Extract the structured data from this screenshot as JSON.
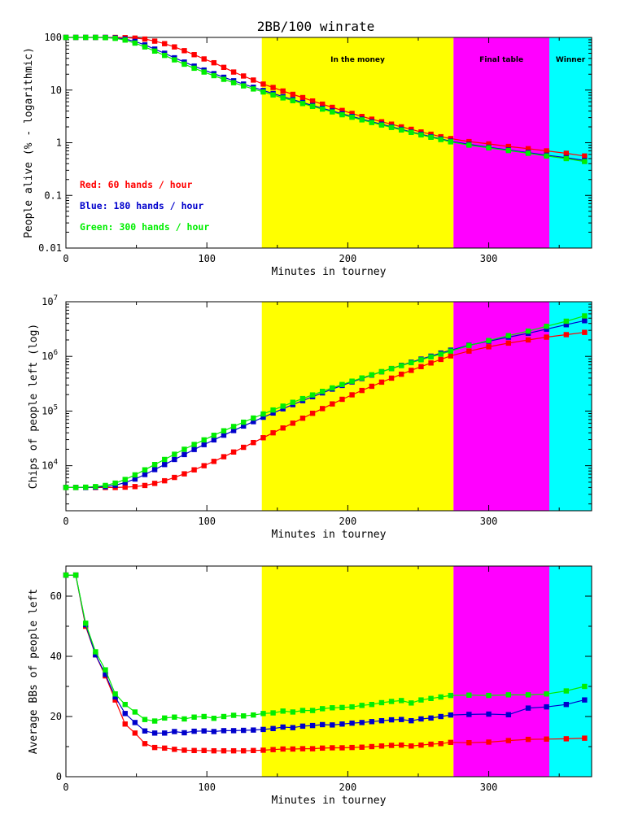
{
  "title": "2BB/100 winrate",
  "zones": [
    {
      "label": "",
      "x0": 0,
      "x1": 139,
      "color": "#ffffff"
    },
    {
      "label": "In the money",
      "x0": 139,
      "x1": 275,
      "color": "#ffff00"
    },
    {
      "label": "Final table",
      "x0": 275,
      "x1": 343,
      "color": "#ff00ff"
    },
    {
      "label": "Winner",
      "x0": 343,
      "x1": 373,
      "color": "#00ffff"
    }
  ],
  "legend": [
    {
      "text": "Red: 60 hands / hour",
      "color": "#ff0000"
    },
    {
      "text": "Blue: 180 hands / hour",
      "color": "#0000cc"
    },
    {
      "text": "Green: 300 hands / hour",
      "color": "#00ee00"
    }
  ],
  "chart_data": [
    {
      "type": "line",
      "title": "2BB/100 winrate",
      "xlabel": "Minutes in tourney",
      "ylabel": "People alive (% - logarithmic)",
      "xlim": [
        0,
        373
      ],
      "ylim": [
        0.01,
        100
      ],
      "yscale": "log",
      "xticks": [
        "0",
        "100",
        "200",
        "300"
      ],
      "yticks": [
        "0.01",
        "0.1",
        "1",
        "10",
        "100"
      ],
      "series": [
        {
          "name": "Red: 60 hands / hour",
          "color": "#ff0000",
          "x": [
            0,
            7,
            14,
            21,
            28,
            35,
            42,
            49,
            56,
            63,
            70,
            77,
            84,
            91,
            98,
            105,
            112,
            119,
            126,
            133,
            140,
            147,
            154,
            161,
            168,
            175,
            182,
            189,
            196,
            203,
            210,
            217,
            224,
            231,
            238,
            245,
            252,
            259,
            266,
            273,
            286,
            300,
            314,
            328,
            341,
            355,
            368
          ],
          "y": [
            100,
            100,
            100,
            100,
            100,
            100,
            99,
            97,
            93,
            85,
            76,
            66,
            56,
            47,
            39,
            33,
            27,
            22,
            18.5,
            15.5,
            13,
            11.2,
            9.6,
            8.3,
            7.2,
            6.2,
            5.4,
            4.7,
            4.1,
            3.6,
            3.15,
            2.8,
            2.5,
            2.25,
            2,
            1.8,
            1.6,
            1.45,
            1.3,
            1.2,
            1.05,
            0.95,
            0.85,
            0.77,
            0.7,
            0.63,
            0.56
          ]
        },
        {
          "name": "Blue: 180 hands / hour",
          "color": "#0000cc",
          "x": [
            0,
            7,
            14,
            21,
            28,
            35,
            42,
            49,
            56,
            63,
            70,
            77,
            84,
            91,
            98,
            105,
            112,
            119,
            126,
            133,
            140,
            147,
            154,
            161,
            168,
            175,
            182,
            189,
            196,
            203,
            210,
            217,
            224,
            231,
            238,
            245,
            252,
            259,
            266,
            273,
            286,
            300,
            314,
            328,
            341,
            355,
            368
          ],
          "y": [
            100,
            100,
            100,
            100,
            100,
            98,
            93,
            84,
            72,
            60,
            50,
            41,
            34,
            28.5,
            24,
            20.5,
            17.5,
            15,
            13,
            11.3,
            9.8,
            8.6,
            7.5,
            6.6,
            5.8,
            5.1,
            4.5,
            4,
            3.55,
            3.15,
            2.8,
            2.5,
            2.25,
            2,
            1.8,
            1.6,
            1.45,
            1.3,
            1.18,
            1.07,
            0.93,
            0.82,
            0.73,
            0.65,
            0.58,
            0.52,
            0.46
          ]
        },
        {
          "name": "Green: 300 hands / hour",
          "color": "#00ee00",
          "x": [
            0,
            7,
            14,
            21,
            28,
            35,
            42,
            49,
            56,
            63,
            70,
            77,
            84,
            91,
            98,
            105,
            112,
            119,
            126,
            133,
            140,
            147,
            154,
            161,
            168,
            175,
            182,
            189,
            196,
            203,
            210,
            217,
            224,
            231,
            238,
            245,
            252,
            259,
            266,
            273,
            286,
            300,
            314,
            328,
            341,
            355,
            368
          ],
          "y": [
            100,
            100,
            100,
            100,
            99,
            96,
            89,
            78,
            66,
            55,
            45.5,
            37.5,
            31,
            26,
            22,
            18.8,
            16,
            13.8,
            12,
            10.5,
            9.2,
            8.1,
            7.1,
            6.3,
            5.55,
            4.9,
            4.35,
            3.85,
            3.4,
            3.05,
            2.72,
            2.42,
            2.17,
            1.95,
            1.75,
            1.57,
            1.41,
            1.27,
            1.15,
            1.04,
            0.9,
            0.8,
            0.71,
            0.63,
            0.56,
            0.5,
            0.44
          ]
        }
      ]
    },
    {
      "type": "line",
      "title": "",
      "xlabel": "Minutes in tourney",
      "ylabel": "Chips of people left (log)",
      "xlim": [
        0,
        373
      ],
      "ylim": [
        1500,
        10000000
      ],
      "yscale": "log",
      "xticks": [
        "0",
        "100",
        "200",
        "300"
      ],
      "yticks": [
        "10^4",
        "10^5",
        "10^6",
        "10^7"
      ],
      "series": [
        {
          "name": "Red: 60 hands / hour",
          "color": "#ff0000",
          "x": [
            0,
            7,
            14,
            21,
            28,
            35,
            42,
            49,
            56,
            63,
            70,
            77,
            84,
            91,
            98,
            105,
            112,
            119,
            126,
            133,
            140,
            147,
            154,
            161,
            168,
            175,
            182,
            189,
            196,
            203,
            210,
            217,
            224,
            231,
            238,
            245,
            252,
            259,
            266,
            273,
            286,
            300,
            314,
            328,
            341,
            355,
            368
          ],
          "y": [
            4000,
            4000,
            4000,
            4000,
            4000,
            4000,
            4050,
            4150,
            4350,
            4750,
            5300,
            6100,
            7100,
            8400,
            10000,
            12000,
            14600,
            17800,
            21700,
            26500,
            32500,
            40000,
            49000,
            60000,
            74000,
            91000,
            111000,
            135000,
            164000,
            198000,
            238000,
            284000,
            338000,
            400000,
            472000,
            555000,
            650000,
            758000,
            880000,
            1020000,
            1250000,
            1500000,
            1750000,
            2000000,
            2250000,
            2500000,
            2750000
          ]
        },
        {
          "name": "Blue: 180 hands / hour",
          "color": "#0000cc",
          "x": [
            0,
            7,
            14,
            21,
            28,
            35,
            42,
            49,
            56,
            63,
            70,
            77,
            84,
            91,
            98,
            105,
            112,
            119,
            126,
            133,
            140,
            147,
            154,
            161,
            168,
            175,
            182,
            189,
            196,
            203,
            210,
            217,
            224,
            231,
            238,
            245,
            252,
            259,
            266,
            273,
            286,
            300,
            314,
            328,
            341,
            355,
            368
          ],
          "y": [
            4000,
            4000,
            4000,
            4050,
            4150,
            4400,
            4900,
            5700,
            6900,
            8500,
            10500,
            13000,
            16000,
            19800,
            24300,
            29700,
            36200,
            44000,
            53200,
            64000,
            77000,
            92000,
            110000,
            131000,
            155000,
            183000,
            215000,
            252000,
            294000,
            341000,
            394000,
            455000,
            523000,
            600000,
            687000,
            784000,
            892000,
            1010000,
            1150000,
            1300000,
            1600000,
            1900000,
            2250000,
            2650000,
            3150000,
            3800000,
            4500000
          ]
        },
        {
          "name": "Green: 300 hands / hour",
          "color": "#00ee00",
          "x": [
            0,
            7,
            14,
            21,
            28,
            35,
            42,
            49,
            56,
            63,
            70,
            77,
            84,
            91,
            98,
            105,
            112,
            119,
            126,
            133,
            140,
            147,
            154,
            161,
            168,
            175,
            182,
            189,
            196,
            203,
            210,
            217,
            224,
            231,
            238,
            245,
            252,
            259,
            266,
            273,
            286,
            300,
            314,
            328,
            341,
            355,
            368
          ],
          "y": [
            4000,
            4000,
            4050,
            4150,
            4350,
            4800,
            5600,
            6800,
            8400,
            10500,
            13000,
            16200,
            20000,
            24500,
            29700,
            36000,
            43500,
            52200,
            62500,
            74500,
            88500,
            104500,
            123000,
            144500,
            169000,
            197000,
            229000,
            265000,
            306000,
            352000,
            403000,
            461000,
            526000,
            598000,
            678000,
            768000,
            868000,
            980000,
            1100000,
            1250000,
            1580000,
            1950000,
            2400000,
            2900000,
            3550000,
            4400000,
            5500000
          ]
        }
      ]
    },
    {
      "type": "line",
      "title": "",
      "xlabel": "Minutes in tourney",
      "ylabel": "Average BBs of people left",
      "xlim": [
        0,
        373
      ],
      "ylim": [
        0,
        70
      ],
      "yscale": "linear",
      "xticks": [
        "0",
        "100",
        "200",
        "300"
      ],
      "yticks": [
        "0",
        "20",
        "40",
        "60"
      ],
      "series": [
        {
          "name": "Red: 60 hands / hour",
          "color": "#ff0000",
          "x": [
            0,
            7,
            14,
            21,
            28,
            35,
            42,
            49,
            56,
            63,
            70,
            77,
            84,
            91,
            98,
            105,
            112,
            119,
            126,
            133,
            140,
            147,
            154,
            161,
            168,
            175,
            182,
            189,
            196,
            203,
            210,
            217,
            224,
            231,
            238,
            245,
            252,
            259,
            266,
            273,
            286,
            300,
            314,
            328,
            341,
            355,
            368
          ],
          "y": [
            67,
            67,
            50,
            40.5,
            33.5,
            25.5,
            17.5,
            14.5,
            11,
            9.7,
            9.5,
            9.1,
            8.8,
            8.7,
            8.7,
            8.6,
            8.6,
            8.6,
            8.6,
            8.7,
            8.8,
            9,
            9.2,
            9.2,
            9.3,
            9.3,
            9.5,
            9.6,
            9.6,
            9.7,
            9.8,
            10,
            10.2,
            10.4,
            10.5,
            10.2,
            10.5,
            10.8,
            11,
            11.4,
            11.3,
            11.5,
            12,
            12.4,
            12.5,
            12.6,
            12.8
          ]
        },
        {
          "name": "Blue: 180 hands / hour",
          "color": "#0000cc",
          "x": [
            0,
            7,
            14,
            21,
            28,
            35,
            42,
            49,
            56,
            63,
            70,
            77,
            84,
            91,
            98,
            105,
            112,
            119,
            126,
            133,
            140,
            147,
            154,
            161,
            168,
            175,
            182,
            189,
            196,
            203,
            210,
            217,
            224,
            231,
            238,
            245,
            252,
            259,
            266,
            273,
            286,
            300,
            314,
            328,
            341,
            355,
            368
          ],
          "y": [
            67,
            67,
            50.5,
            40.5,
            34,
            26.5,
            21,
            18,
            15.2,
            14.5,
            14.5,
            15,
            14.6,
            15.1,
            15.2,
            15,
            15.3,
            15.3,
            15.4,
            15.5,
            15.7,
            16,
            16.5,
            16.3,
            16.8,
            17,
            17.3,
            17.2,
            17.5,
            17.8,
            18,
            18.3,
            18.6,
            18.9,
            19,
            18.6,
            19.2,
            19.5,
            20,
            20.5,
            20.7,
            20.8,
            20.6,
            22.8,
            23.2,
            24,
            25.5
          ]
        },
        {
          "name": "Green: 300 hands / hour",
          "color": "#00ee00",
          "x": [
            0,
            7,
            14,
            21,
            28,
            35,
            42,
            49,
            56,
            63,
            70,
            77,
            84,
            91,
            98,
            105,
            112,
            119,
            126,
            133,
            140,
            147,
            154,
            161,
            168,
            175,
            182,
            189,
            196,
            203,
            210,
            217,
            224,
            231,
            238,
            245,
            252,
            259,
            266,
            273,
            286,
            300,
            314,
            328,
            341,
            355,
            368
          ],
          "y": [
            67,
            67,
            51,
            41.5,
            35.5,
            27.5,
            24,
            21.5,
            19,
            18.5,
            19.5,
            19.8,
            19.2,
            19.8,
            20,
            19.4,
            20,
            20.4,
            20.2,
            20.5,
            21,
            21.2,
            21.8,
            21.5,
            22,
            22,
            22.6,
            22.9,
            23,
            23.2,
            23.7,
            24,
            24.6,
            25,
            25.3,
            24.5,
            25.5,
            26,
            26.5,
            27,
            27.1,
            27,
            27.2,
            27.2,
            27.5,
            28.5,
            30
          ]
        }
      ]
    }
  ]
}
